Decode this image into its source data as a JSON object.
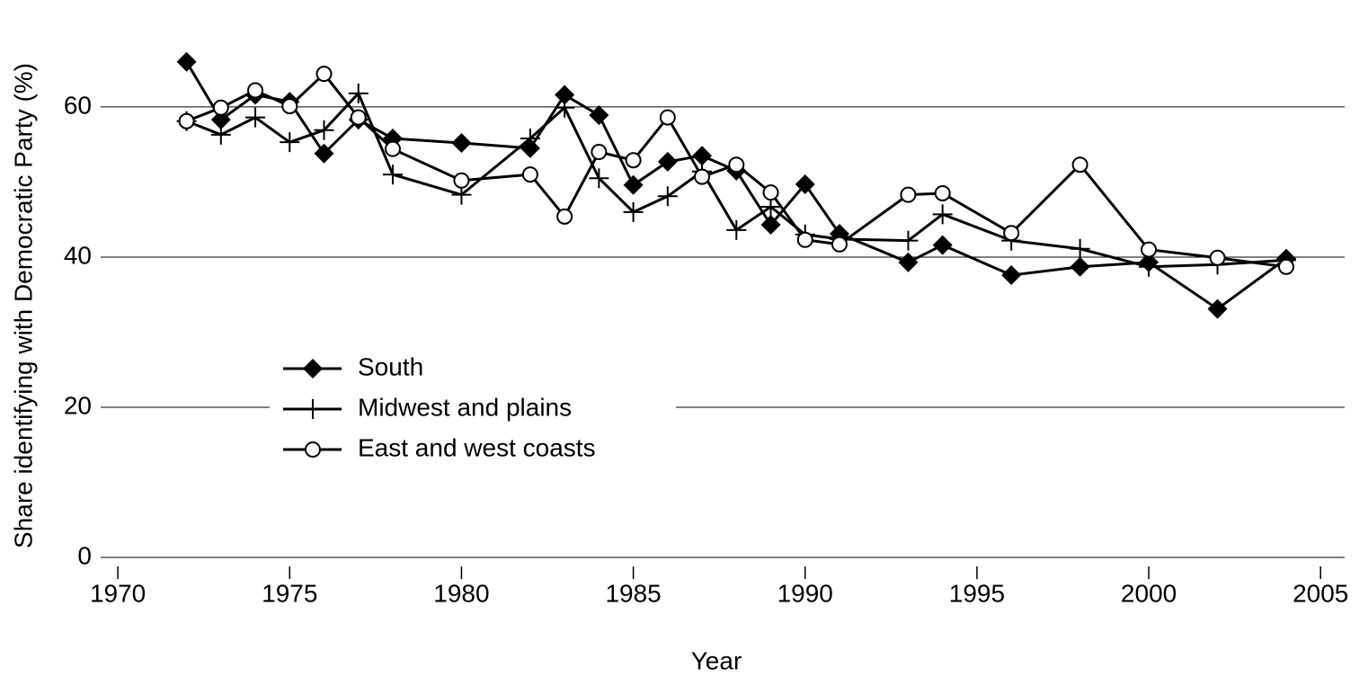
{
  "chart_data": {
    "type": "line",
    "xlabel": "Year",
    "ylabel": "Share identifying with Democratic Party (%)",
    "x": [
      1972,
      1973,
      1974,
      1975,
      1976,
      1977,
      1978,
      1980,
      1982,
      1983,
      1984,
      1985,
      1986,
      1987,
      1988,
      1989,
      1990,
      1991,
      1993,
      1994,
      1996,
      1998,
      2000,
      2002,
      2004
    ],
    "series": [
      {
        "name": "South",
        "color": "#000000",
        "marker": "diamond",
        "values": [
          66.0,
          58.3,
          61.6,
          60.7,
          53.8,
          58.3,
          55.8,
          55.2,
          54.5,
          61.6,
          58.9,
          49.6,
          52.7,
          53.5,
          51.5,
          44.3,
          49.7,
          43.1,
          39.3,
          41.6,
          37.6,
          38.7,
          39.3,
          33.1,
          39.8
        ]
      },
      {
        "name": "Midwest and plains",
        "color": "#000000",
        "marker": "plus",
        "values": [
          58.1,
          56.3,
          58.6,
          55.3,
          56.9,
          61.8,
          51.0,
          48.3,
          55.8,
          59.9,
          50.5,
          46.0,
          48.1,
          51.4,
          43.6,
          46.7,
          43.0,
          42.4,
          42.2,
          45.7,
          42.2,
          41.1,
          38.7,
          39.0,
          39.6
        ]
      },
      {
        "name": "East and west coasts",
        "color": "#000000",
        "marker": "circle",
        "values": [
          58.1,
          59.9,
          62.2,
          60.1,
          64.4,
          58.6,
          54.4,
          50.2,
          51.0,
          45.4,
          54.0,
          52.9,
          58.6,
          50.7,
          52.3,
          48.6,
          42.3,
          41.7,
          48.3,
          48.5,
          43.2,
          52.3,
          41.0,
          39.9,
          38.7
        ]
      }
    ],
    "xlim": [
      1969.5,
      2005.7
    ],
    "xticks": [
      1970,
      1975,
      1980,
      1985,
      1990,
      1995,
      2000,
      2005
    ],
    "ylim": [
      0,
      74
    ],
    "yticks": [
      0,
      20,
      40,
      60
    ],
    "grid": true,
    "legend": "center-left"
  }
}
